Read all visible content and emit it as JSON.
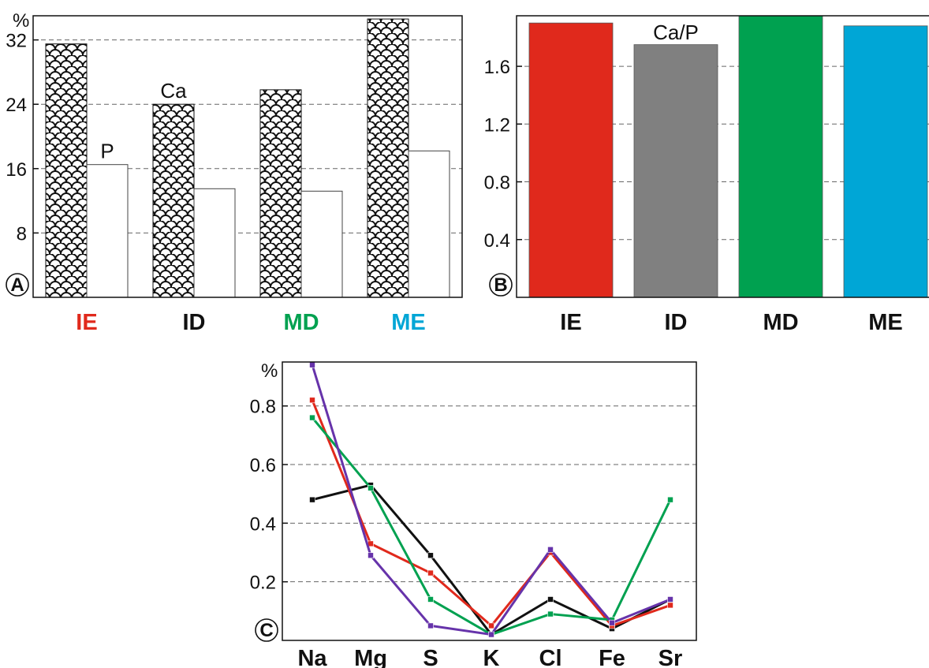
{
  "colors": {
    "IE": "#e0291c",
    "ID": "#111111",
    "MD": "#00a150",
    "ME": "#00a6d6",
    "ID_bar": "#808080",
    "purple": "#6633aa"
  },
  "chart_data": [
    {
      "panel": "A",
      "type": "bar",
      "ylabel": "%",
      "ylim": [
        0,
        35
      ],
      "yticks": [
        "8",
        "16",
        "24",
        "32"
      ],
      "grid": true,
      "categories": [
        "IE",
        "ID",
        "MD",
        "ME"
      ],
      "category_colors": [
        "#e0291c",
        "#111111",
        "#00a150",
        "#00a6d6"
      ],
      "series": [
        {
          "name": "Ca",
          "pattern": "scales",
          "values": [
            31.5,
            24.0,
            25.8,
            34.6
          ]
        },
        {
          "name": "P",
          "pattern": "none",
          "values": [
            16.5,
            13.5,
            13.2,
            18.2
          ]
        }
      ]
    },
    {
      "panel": "B",
      "type": "bar",
      "annotation": "Ca/P",
      "ylim": [
        0,
        1.95
      ],
      "yticks": [
        "0.4",
        "0.8",
        "1.2",
        "1.6"
      ],
      "grid": true,
      "categories": [
        "IE",
        "ID",
        "MD",
        "ME"
      ],
      "values": [
        1.9,
        1.75,
        1.95,
        1.88
      ],
      "bar_colors": [
        "#e0291c",
        "#808080",
        "#00a150",
        "#00a6d6"
      ]
    },
    {
      "panel": "C",
      "type": "line",
      "ylabel": "%",
      "ylim": [
        0,
        0.95
      ],
      "yticks": [
        "0.2",
        "0.4",
        "0.6",
        "0.8"
      ],
      "grid": true,
      "categories": [
        "Na",
        "Mg",
        "S",
        "K",
        "Cl",
        "Fe",
        "Sr"
      ],
      "series": [
        {
          "color": "#111111",
          "values": [
            0.48,
            0.53,
            0.29,
            0.02,
            0.14,
            0.04,
            0.14
          ]
        },
        {
          "color": "#e0291c",
          "values": [
            0.82,
            0.33,
            0.23,
            0.05,
            0.3,
            0.05,
            0.12
          ]
        },
        {
          "color": "#00a150",
          "values": [
            0.76,
            0.52,
            0.14,
            0.02,
            0.09,
            0.07,
            0.48
          ]
        },
        {
          "color": "#6633aa",
          "values": [
            0.94,
            0.29,
            0.05,
            0.02,
            0.31,
            0.06,
            0.14
          ]
        }
      ]
    }
  ]
}
